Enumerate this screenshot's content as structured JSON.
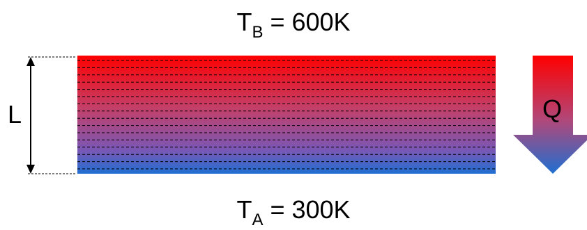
{
  "diagram": {
    "top_temperature": {
      "symbol": "T",
      "subscript": "B",
      "value": " = 600K"
    },
    "bottom_temperature": {
      "symbol": "T",
      "subscript": "A",
      "value": " = 300K"
    },
    "length_label": "L",
    "heat_flow_label": "Q",
    "colors": {
      "hot": "#ff0000",
      "cold": "#1f6fd1",
      "layer_lines": "#000000"
    },
    "layer_line_count": 16
  }
}
